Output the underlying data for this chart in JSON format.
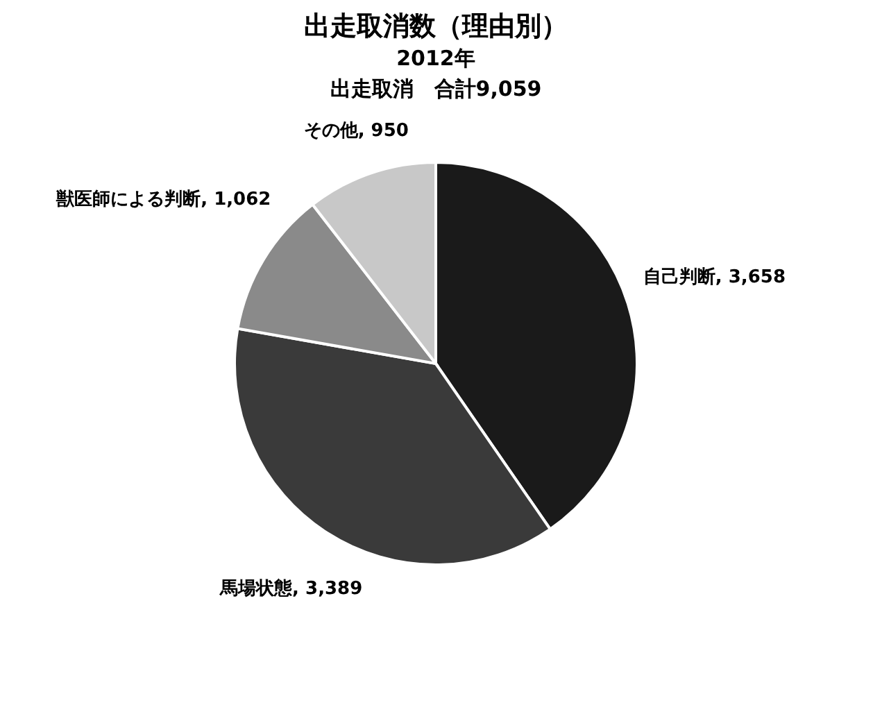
{
  "chart_data": {
    "type": "pie",
    "title": "出走取消数（理由別）",
    "subtitle": "2012年",
    "annotations": [
      "出走取消　合計9,059"
    ],
    "categories": [
      "自己判断",
      "馬場状態",
      "獣医師による判断",
      "その他"
    ],
    "values": [
      3658,
      3389,
      1062,
      950
    ],
    "value_labels": [
      "3,658",
      "3,389",
      "1,062",
      "950"
    ],
    "colors": [
      "#1a1a1a",
      "#3a3a3a",
      "#8a8a8a",
      "#c8c8c8"
    ]
  }
}
